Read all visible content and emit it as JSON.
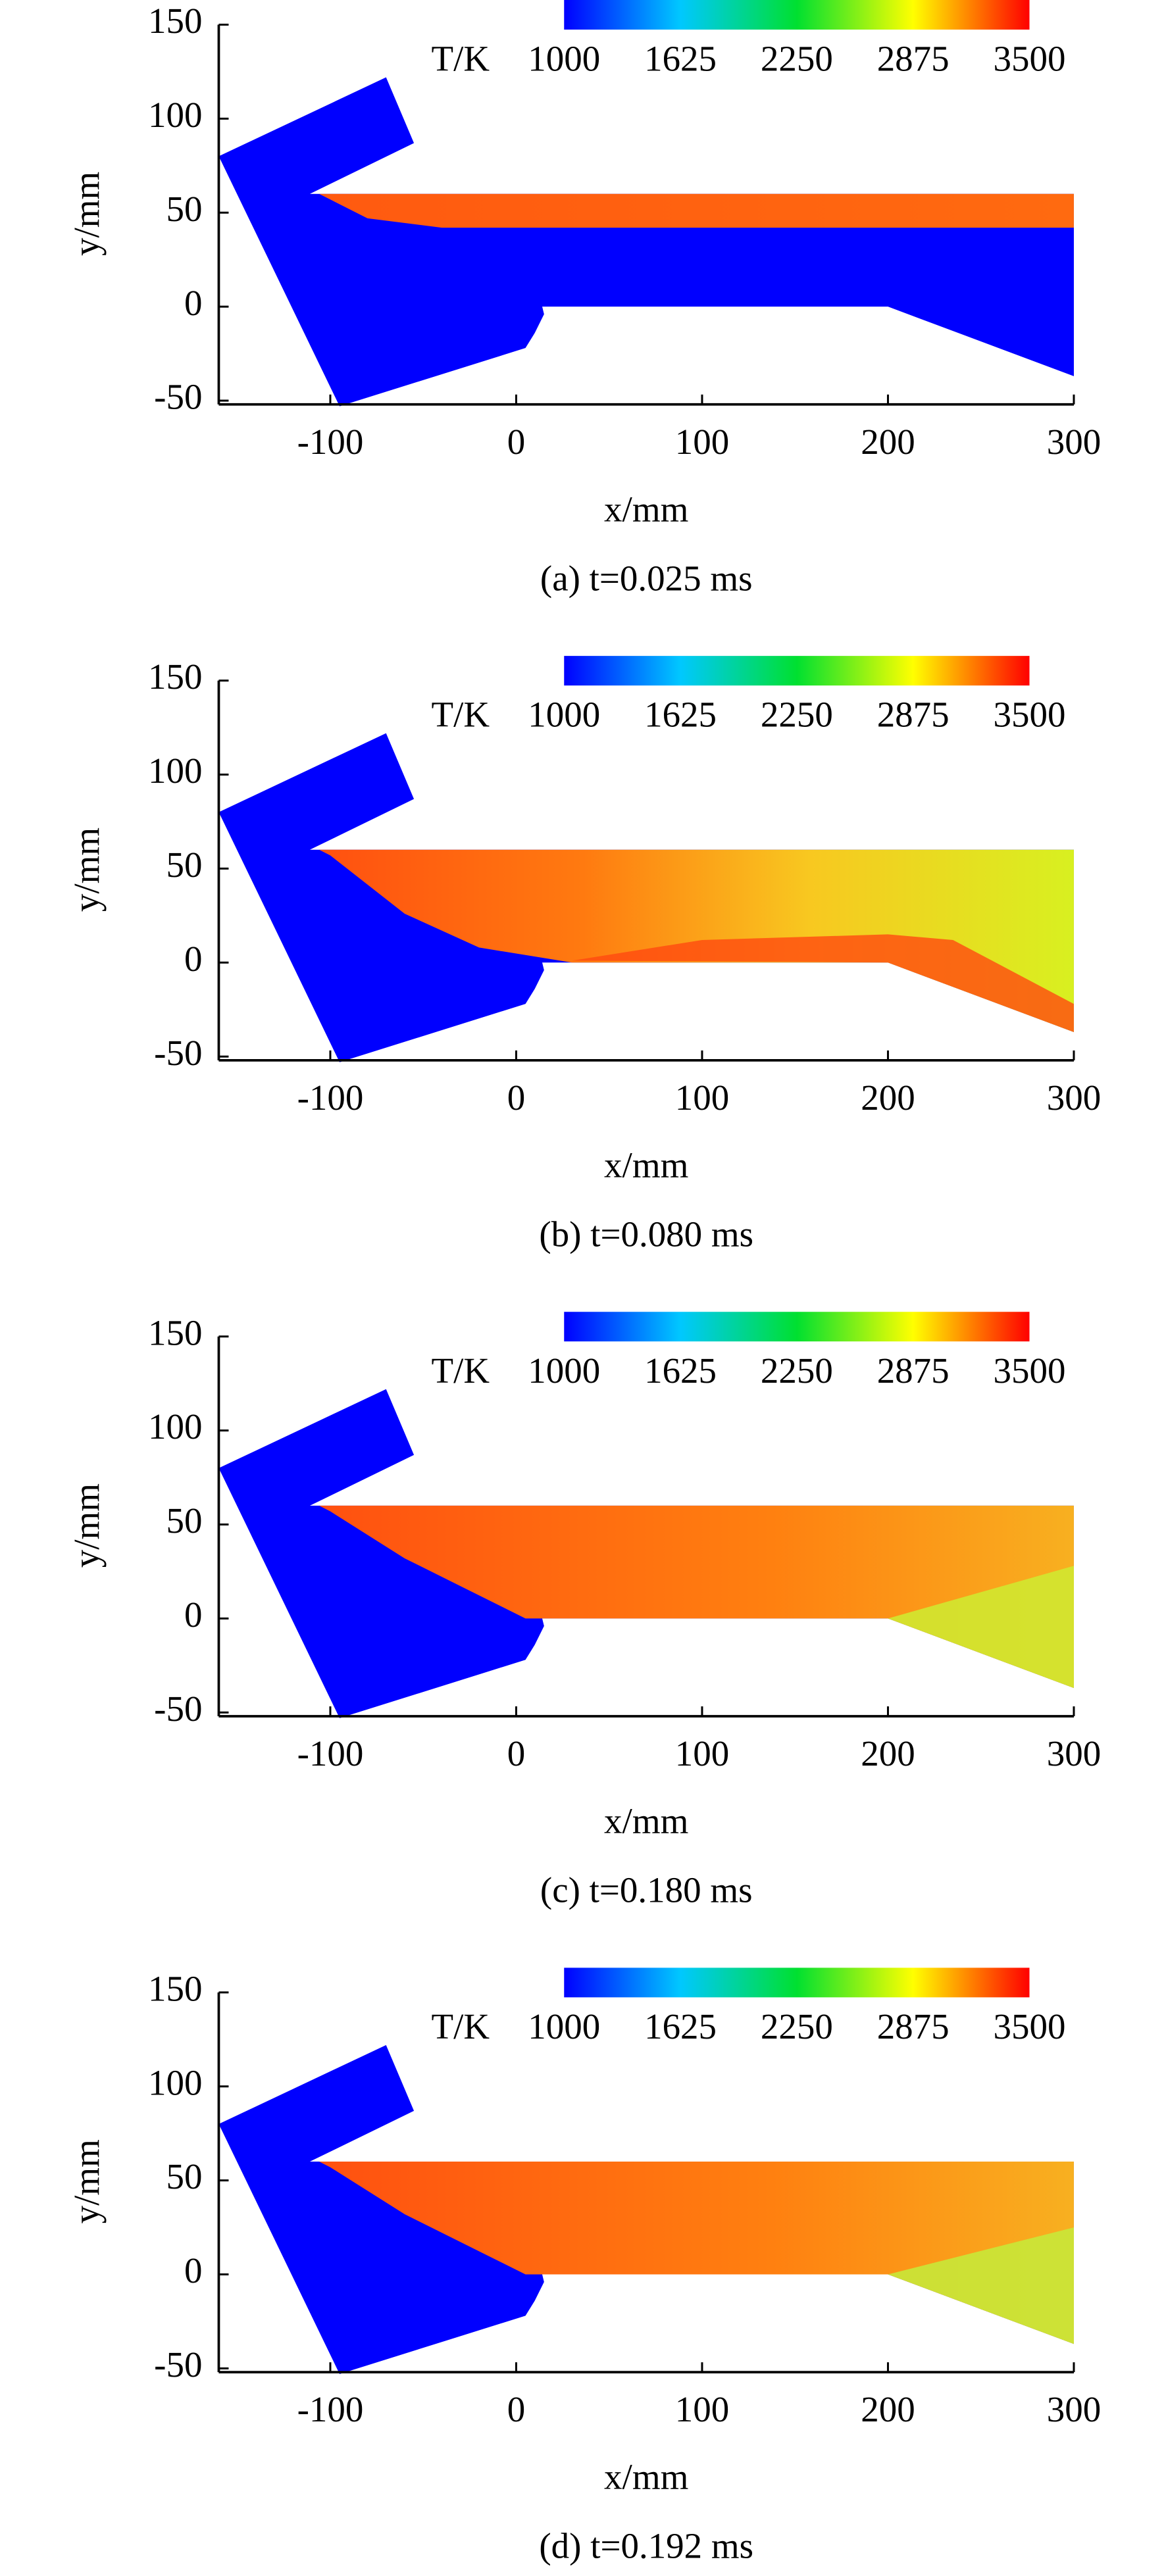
{
  "chart_data": [
    {
      "type": "contour",
      "title": "(a) t=0.025 ms",
      "xlabel": "x/mm",
      "ylabel": "y/mm",
      "xlim": [
        -160,
        300
      ],
      "ylim": [
        -52,
        150
      ],
      "xticks": [
        -100,
        0,
        100,
        200,
        300
      ],
      "yticks": [
        -50,
        0,
        50,
        100,
        150
      ],
      "colorbar": {
        "label": "T/K",
        "lim": [
          1000,
          3500
        ],
        "ticks": [
          1000,
          1625,
          2250,
          2875,
          3500
        ],
        "colors": [
          "#0000ff",
          "#00c8ff",
          "#00e030",
          "#ffff00",
          "#ff0000"
        ]
      }
    },
    {
      "type": "contour",
      "title": "(b) t=0.080 ms",
      "xlabel": "x/mm",
      "ylabel": "y/mm",
      "xlim": [
        -160,
        300
      ],
      "ylim": [
        -52,
        150
      ],
      "xticks": [
        -100,
        0,
        100,
        200,
        300
      ],
      "yticks": [
        -50,
        0,
        50,
        100,
        150
      ],
      "colorbar": {
        "label": "T/K",
        "lim": [
          1000,
          3500
        ],
        "ticks": [
          1000,
          1625,
          2250,
          2875,
          3500
        ],
        "colors": [
          "#0000ff",
          "#00c8ff",
          "#00e030",
          "#ffff00",
          "#ff0000"
        ]
      }
    },
    {
      "type": "contour",
      "title": "(c) t=0.180 ms",
      "xlabel": "x/mm",
      "ylabel": "y/mm",
      "xlim": [
        -160,
        300
      ],
      "ylim": [
        -52,
        150
      ],
      "xticks": [
        -100,
        0,
        100,
        200,
        300
      ],
      "yticks": [
        -50,
        0,
        50,
        100,
        150
      ],
      "colorbar": {
        "label": "T/K",
        "lim": [
          1000,
          3500
        ],
        "ticks": [
          1000,
          1625,
          2250,
          2875,
          3500
        ],
        "colors": [
          "#0000ff",
          "#00c8ff",
          "#00e030",
          "#ffff00",
          "#ff0000"
        ]
      }
    },
    {
      "type": "contour",
      "title": "(d) t=0.192 ms",
      "xlabel": "x/mm",
      "ylabel": "y/mm",
      "xlim": [
        -160,
        300
      ],
      "ylim": [
        -52,
        150
      ],
      "xticks": [
        -100,
        0,
        100,
        200,
        300
      ],
      "yticks": [
        -50,
        0,
        50,
        100,
        150
      ],
      "colorbar": {
        "label": "T/K",
        "lim": [
          1000,
          3500
        ],
        "ticks": [
          1000,
          1625,
          2250,
          2875,
          3500
        ],
        "colors": [
          "#0000ff",
          "#00c8ff",
          "#00e030",
          "#ffff00",
          "#ff0000"
        ]
      }
    }
  ]
}
